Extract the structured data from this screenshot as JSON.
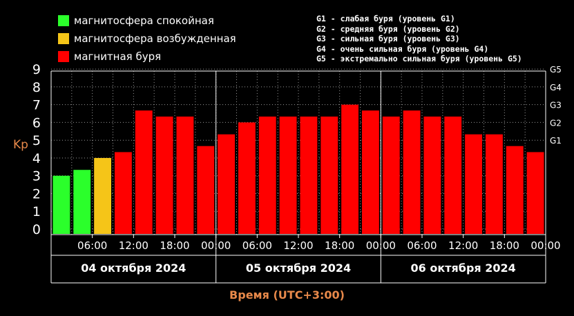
{
  "legend": {
    "items": [
      {
        "label": "магнитосфера спокойная",
        "color": "#2bff2b"
      },
      {
        "label": "магнитосфера возбужденная",
        "color": "#f5c518"
      },
      {
        "label": "магнитная буря",
        "color": "#ff0000"
      }
    ]
  },
  "storm_levels": [
    "G1 - слабая буря (уровень G1)",
    "G2 - средняя буря (уровень G2)",
    "G3 - сильная буря (уровень G3)",
    "G4 - очень сильная буря (уровень G4)",
    "G5 - экстремально сильная буря (уровень G5)"
  ],
  "chart_data": {
    "type": "bar",
    "ylabel": "Kp",
    "xlabel": "Время (UTC+3:00)",
    "ylim": [
      0,
      9
    ],
    "yticks": [
      "0",
      "1",
      "2",
      "3",
      "4",
      "5",
      "6",
      "7",
      "8",
      "9"
    ],
    "g_levels": [
      {
        "label": "G1",
        "kp": 5
      },
      {
        "label": "G2",
        "kp": 6
      },
      {
        "label": "G3",
        "kp": 7
      },
      {
        "label": "G4",
        "kp": 8
      },
      {
        "label": "G5",
        "kp": 9
      }
    ],
    "values": [
      3.0,
      3.33,
      4.0,
      4.33,
      6.67,
      6.33,
      6.33,
      4.67,
      5.33,
      6.0,
      6.33,
      6.33,
      6.33,
      6.33,
      7.0,
      6.67,
      6.33,
      6.67,
      6.33,
      6.33,
      5.33,
      5.33,
      4.67,
      4.33
    ],
    "bar_colors": [
      "#2bff2b",
      "#2bff2b",
      "#f5c518",
      "#ff0000",
      "#ff0000",
      "#ff0000",
      "#ff0000",
      "#ff0000",
      "#ff0000",
      "#ff0000",
      "#ff0000",
      "#ff0000",
      "#ff0000",
      "#ff0000",
      "#ff0000",
      "#ff0000",
      "#ff0000",
      "#ff0000",
      "#ff0000",
      "#ff0000",
      "#ff0000",
      "#ff0000",
      "#ff0000",
      "#ff0000"
    ],
    "xtick_labels": [
      "06:00",
      "12:00",
      "18:00",
      "00:00",
      "06:00",
      "12:00",
      "18:00",
      "00:00",
      "06:00",
      "12:00",
      "18:00",
      "00:00"
    ],
    "days": [
      "04 октября 2024",
      "05 октября 2024",
      "06 октября 2024"
    ],
    "grid": true
  }
}
